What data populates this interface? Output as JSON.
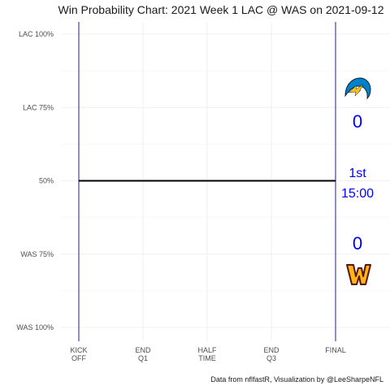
{
  "chart_data": {
    "type": "line",
    "title": "Win Probability Chart: 2021 Week 1 LAC @ WAS on 2021-09-12",
    "caption": "Data from nflfastR, Visualization by @LeeSharpeNFL",
    "ylim": [
      0,
      1
    ],
    "yticks": [
      {
        "value": 1.0,
        "label": "LAC 100%"
      },
      {
        "value": 0.75,
        "label": "LAC 75%"
      },
      {
        "value": 0.5,
        "label": "50%"
      },
      {
        "value": 0.25,
        "label": "WAS 75%"
      },
      {
        "value": 0.0,
        "label": "WAS 100%"
      }
    ],
    "xticks": [
      {
        "value": 0,
        "lines": [
          "KICK",
          "OFF"
        ]
      },
      {
        "value": 1,
        "lines": [
          "END",
          "Q1"
        ]
      },
      {
        "value": 2,
        "lines": [
          "HALF",
          "TIME"
        ]
      },
      {
        "value": 3,
        "lines": [
          "END",
          "Q3"
        ]
      },
      {
        "value": 4,
        "lines": [
          "FINAL"
        ]
      }
    ],
    "xlim": [
      0,
      4
    ],
    "grid": true,
    "series": [
      {
        "x": [
          0,
          4
        ],
        "y": [
          0.5,
          0.5
        ],
        "color": "#000000"
      }
    ],
    "vlines": [
      0,
      4
    ],
    "vline_color": "#1f1f7a",
    "score_color": "#0000ff",
    "home": {
      "team": "WAS",
      "score": "0",
      "logo": "was-logo-icon"
    },
    "away": {
      "team": "LAC",
      "score": "0",
      "logo": "lac-logo-icon"
    },
    "clock": {
      "quarter": "1st",
      "time": "15:00"
    }
  }
}
